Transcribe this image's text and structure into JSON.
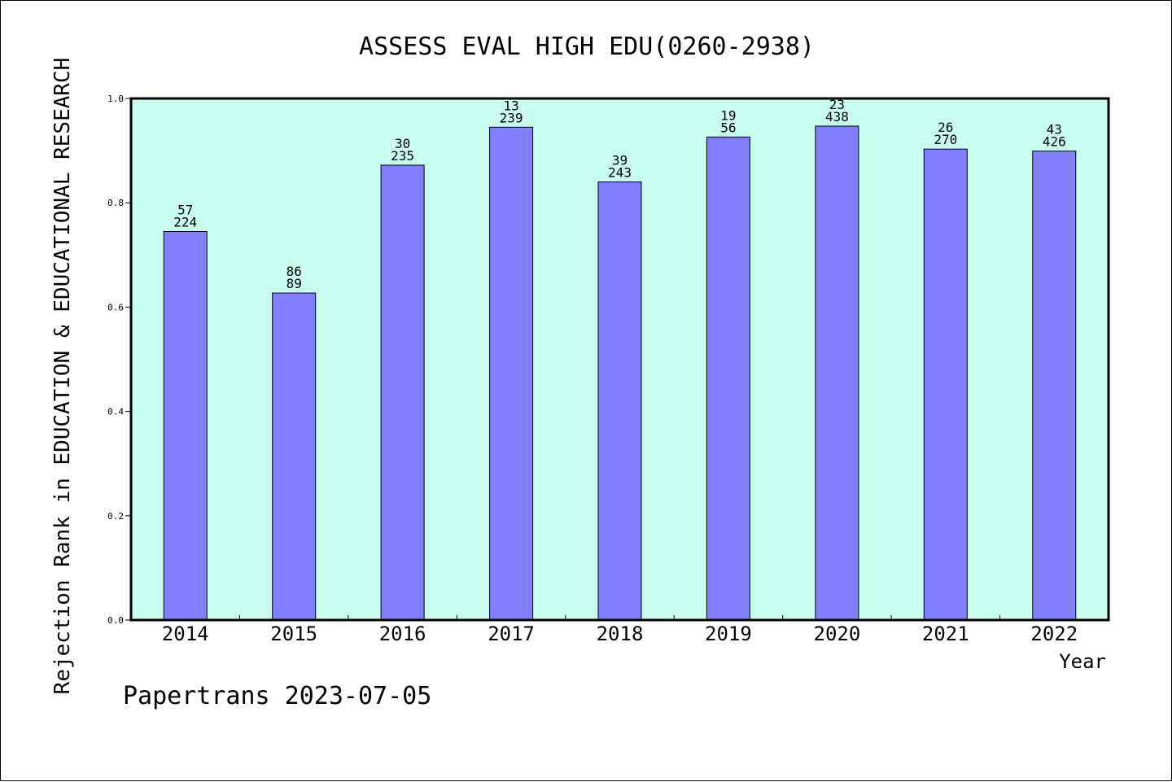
{
  "chart_data": {
    "type": "bar",
    "title": "ASSESS EVAL HIGH EDU(0260-2938)",
    "xlabel": "Year",
    "ylabel": "Rejection Rank in EDUCATION & EDUCATIONAL RESEARCH",
    "categories": [
      "2014",
      "2015",
      "2016",
      "2017",
      "2018",
      "2019",
      "2020",
      "2021",
      "2022"
    ],
    "values": [
      0.745,
      0.627,
      0.872,
      0.945,
      0.84,
      0.926,
      0.947,
      0.903,
      0.899
    ],
    "bar_labels_top": [
      "57",
      "86",
      "30",
      "13",
      "39",
      "19",
      "23",
      "26",
      "43"
    ],
    "bar_labels_bottom": [
      "224",
      "89",
      "235",
      "239",
      "243",
      "56",
      "438",
      "270",
      "426"
    ],
    "ylim": [
      0,
      1.0
    ],
    "yticks": [
      "0.0",
      "0.2",
      "0.4",
      "0.6",
      "0.8",
      "1.0"
    ],
    "grid": false,
    "colors": {
      "bar_fill": "#8080ff",
      "plot_background": "#c8fcee",
      "bar_stroke": "#000000"
    }
  },
  "footer": {
    "text": "Papertrans 2023-07-05"
  }
}
